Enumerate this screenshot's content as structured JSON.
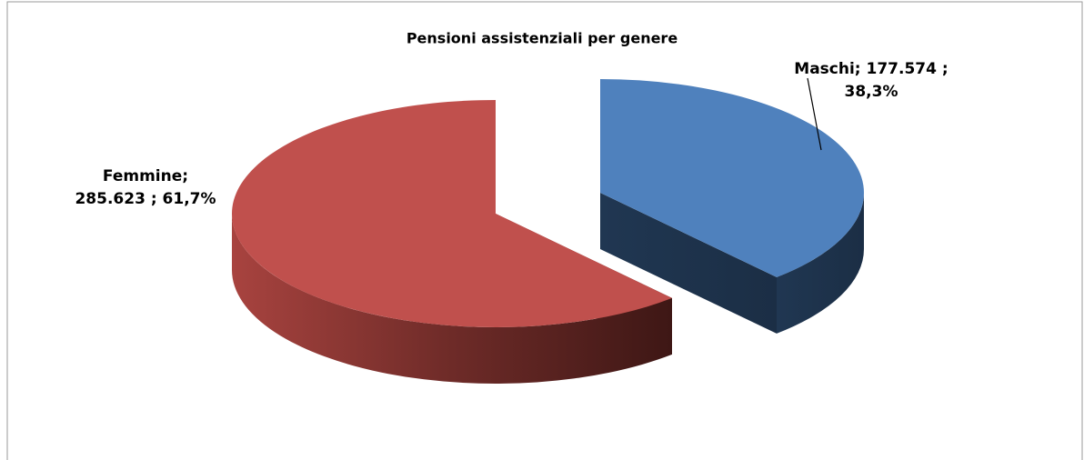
{
  "chart_data": {
    "type": "pie",
    "title": "Pensioni assistenziali per genere",
    "values": [
      177574,
      285623
    ],
    "value_labels": [
      [
        "Maschi;  177.574 ;",
        "38,3%"
      ],
      [
        "Femmine;",
        "285.623 ; 61,7%"
      ]
    ],
    "colors": [
      "#4f81bd",
      "#c0504d"
    ]
  }
}
